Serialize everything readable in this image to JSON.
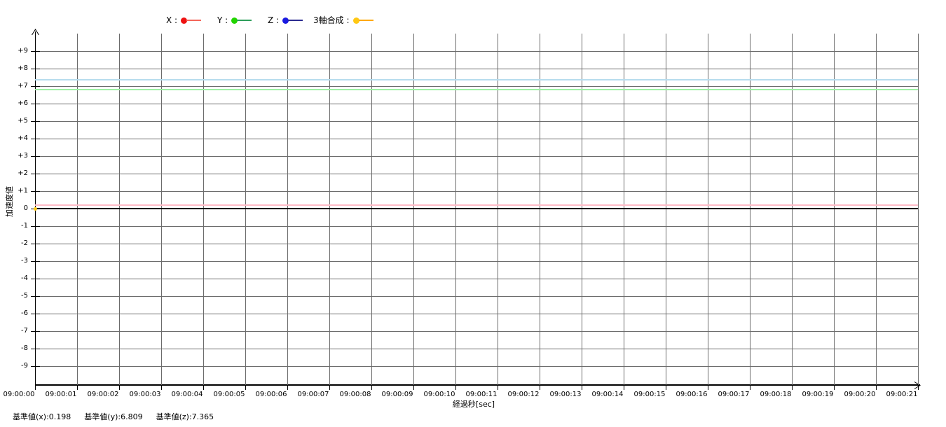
{
  "chart_data": {
    "type": "line",
    "title": "",
    "xlabel": "経過秒[sec]",
    "ylabel": "加速度値",
    "grid": true,
    "legend_position": "top",
    "ylim": [
      -10,
      10
    ],
    "x_ticks": [
      "09:00:00",
      "09:00:01",
      "09:00:02",
      "09:00:03",
      "09:00:04",
      "09:00:05",
      "09:00:06",
      "09:00:07",
      "09:00:08",
      "09:00:09",
      "09:00:10",
      "09:00:11",
      "09:00:12",
      "09:00:13",
      "09:00:14",
      "09:00:15",
      "09:00:16",
      "09:00:17",
      "09:00:18",
      "09:00:19",
      "09:00:20",
      "09:00:21"
    ],
    "y_ticks": [
      "+9",
      "+8",
      "+7",
      "+6",
      "+5",
      "+4",
      "+3",
      "+2",
      "+1",
      "0",
      "-1",
      "-2",
      "-3",
      "-4",
      "-5",
      "-6",
      "-7",
      "-8",
      "-9"
    ],
    "series": [
      {
        "id": "x",
        "name": "X",
        "legend_label": "X :",
        "dot_color": "#ee1111",
        "line_color": "#f4665a",
        "ref_value": 0.198,
        "ref_line_color": "#ffbcc8",
        "points": []
      },
      {
        "id": "y",
        "name": "Y",
        "legend_label": "Y :",
        "dot_color": "#22d400",
        "line_color": "#2e9e5b",
        "ref_value": 6.809,
        "ref_line_color": "#9ef0a4",
        "points": []
      },
      {
        "id": "z",
        "name": "Z",
        "legend_label": "Z :",
        "dot_color": "#1a1ae0",
        "line_color": "#2b2b8f",
        "ref_value": 7.365,
        "ref_line_color": "#b6dcee",
        "points": []
      },
      {
        "id": "composite",
        "name": "3軸合成",
        "legend_label": "3軸合成 :",
        "dot_color": "#ffc813",
        "line_color": "#ffa800",
        "ref_value": null,
        "ref_line_color": null,
        "points": [
          {
            "t": "09:00:00",
            "value": 0
          }
        ]
      }
    ]
  },
  "footer": {
    "baseline_x_label": "基準値(x):0.198",
    "baseline_y_label": "基準値(y):6.809",
    "baseline_z_label": "基準値(z):7.365"
  }
}
